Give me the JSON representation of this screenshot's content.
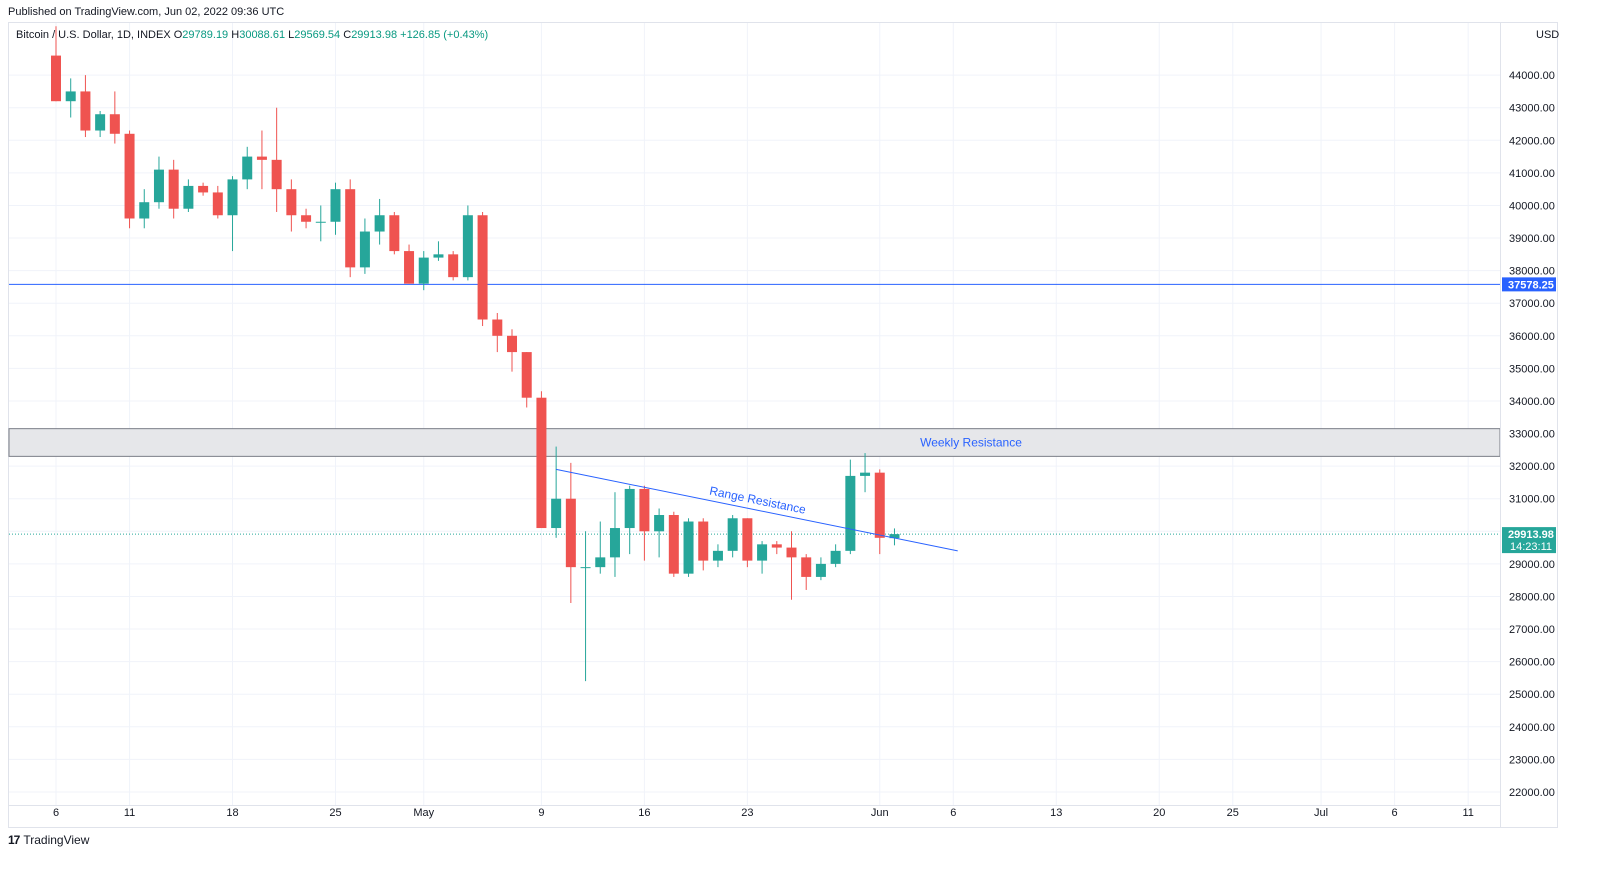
{
  "header": {
    "published": "Published on TradingView.com, Jun 02, 2022 09:36 UTC"
  },
  "legend": {
    "symbol": "Bitcoin / U.S. Dollar, 1D, INDEX",
    "open_label": "O",
    "open": "29789.19",
    "high_label": "H",
    "high": "30088.61",
    "low_label": "L",
    "low": "29569.54",
    "close_label": "C",
    "close": "29913.98",
    "change": "+126.85 (+0.43%)"
  },
  "currency": "USD",
  "brand": {
    "logo": "17",
    "name": "TradingView"
  },
  "colors": {
    "up": "#26a69a",
    "down": "#ef5350",
    "grid": "#f0f3fa",
    "hline": "#2962ff",
    "zone_fill": "#e6e7ea",
    "zone_border": "#7a7d86",
    "price_tag": "#26a69a"
  },
  "chart_data": {
    "type": "candlestick",
    "y_range": [
      21600,
      45600
    ],
    "y_ticks": [
      22000,
      23000,
      24000,
      25000,
      26000,
      27000,
      28000,
      29000,
      30000,
      31000,
      32000,
      33000,
      34000,
      35000,
      36000,
      37000,
      38000,
      39000,
      40000,
      41000,
      42000,
      43000,
      44000
    ],
    "y_tick_labels": [
      "22000.00",
      "23000.00",
      "24000.00",
      "25000.00",
      "26000.00",
      "27000.00",
      "28000.00",
      "29000.00",
      "30000.00",
      "31000.00",
      "32000.00",
      "33000.00",
      "34000.00",
      "35000.00",
      "36000.00",
      "37000.00",
      "38000.00",
      "39000.00",
      "40000.00",
      "41000.00",
      "42000.00",
      "43000.00",
      "44000.00"
    ],
    "x_ticks": [
      {
        "day": 0,
        "label": "6"
      },
      {
        "day": 5,
        "label": "11"
      },
      {
        "day": 12,
        "label": "18"
      },
      {
        "day": 19,
        "label": "25"
      },
      {
        "day": 25,
        "label": "May"
      },
      {
        "day": 33,
        "label": "9"
      },
      {
        "day": 40,
        "label": "16"
      },
      {
        "day": 47,
        "label": "23"
      },
      {
        "day": 56,
        "label": "Jun"
      },
      {
        "day": 61,
        "label": "6"
      },
      {
        "day": 68,
        "label": "13"
      },
      {
        "day": 75,
        "label": "20"
      },
      {
        "day": 80,
        "label": "25"
      },
      {
        "day": 86,
        "label": "Jul"
      },
      {
        "day": 91,
        "label": "6"
      },
      {
        "day": 96,
        "label": "11"
      }
    ],
    "candles": [
      [
        44600,
        45500,
        43200,
        43200
      ],
      [
        43200,
        43900,
        42700,
        43500
      ],
      [
        43500,
        44000,
        42100,
        42300
      ],
      [
        42300,
        42900,
        42100,
        42800
      ],
      [
        42800,
        43500,
        41900,
        42200
      ],
      [
        42200,
        42300,
        39300,
        39600
      ],
      [
        39600,
        40500,
        39300,
        40100
      ],
      [
        40100,
        41500,
        39900,
        41100
      ],
      [
        41100,
        41400,
        39600,
        39900
      ],
      [
        39900,
        40800,
        39800,
        40600
      ],
      [
        40600,
        40700,
        40300,
        40400
      ],
      [
        40400,
        40600,
        39600,
        39700
      ],
      [
        39700,
        40900,
        38600,
        40800
      ],
      [
        40800,
        41800,
        40500,
        41500
      ],
      [
        41500,
        42300,
        40500,
        41400
      ],
      [
        41400,
        43000,
        39800,
        40500
      ],
      [
        40500,
        40800,
        39200,
        39700
      ],
      [
        39700,
        39900,
        39300,
        39500
      ],
      [
        39500,
        40000,
        38900,
        39500
      ],
      [
        39500,
        40700,
        39100,
        40500
      ],
      [
        40500,
        40800,
        37800,
        38100
      ],
      [
        38100,
        39600,
        37900,
        39200
      ],
      [
        39200,
        40200,
        38800,
        39700
      ],
      [
        39700,
        39800,
        38500,
        38600
      ],
      [
        38600,
        38800,
        37600,
        37600
      ],
      [
        37600,
        38600,
        37400,
        38400
      ],
      [
        38400,
        38900,
        38300,
        38500
      ],
      [
        38500,
        38600,
        37700,
        37800
      ],
      [
        37800,
        40000,
        37700,
        39700
      ],
      [
        39700,
        39800,
        36300,
        36500
      ],
      [
        36500,
        36700,
        35500,
        36000
      ],
      [
        36000,
        36200,
        34900,
        35500
      ],
      [
        35500,
        35500,
        33800,
        34100
      ],
      [
        34100,
        34300,
        30100,
        30100
      ],
      [
        30100,
        32600,
        29800,
        31000
      ],
      [
        31000,
        32100,
        27800,
        28900
      ],
      [
        28900,
        30000,
        25400,
        28900
      ],
      [
        28900,
        30300,
        28700,
        29200
      ],
      [
        29200,
        31200,
        28600,
        30100
      ],
      [
        30100,
        31400,
        29300,
        31300
      ],
      [
        31300,
        31400,
        29100,
        30000
      ],
      [
        30000,
        30700,
        29200,
        30500
      ],
      [
        30500,
        30600,
        28600,
        28700
      ],
      [
        28700,
        30400,
        28600,
        30300
      ],
      [
        30300,
        30400,
        28800,
        29100
      ],
      [
        29100,
        29600,
        28900,
        29400
      ],
      [
        29400,
        30500,
        29200,
        30400
      ],
      [
        30400,
        30400,
        28900,
        29100
      ],
      [
        29100,
        29700,
        28700,
        29600
      ],
      [
        29600,
        29700,
        29300,
        29500
      ],
      [
        29500,
        30000,
        27900,
        29200
      ],
      [
        29200,
        29300,
        28200,
        28600
      ],
      [
        28600,
        29200,
        28500,
        29000
      ],
      [
        29000,
        29600,
        28900,
        29400
      ],
      [
        29400,
        32200,
        29300,
        31700
      ],
      [
        31700,
        32400,
        31200,
        31800
      ],
      [
        31800,
        31900,
        29300,
        29800
      ],
      [
        29789.19,
        30088.61,
        29569.54,
        29913.98
      ]
    ],
    "horizontal_line": {
      "value": 37578.25,
      "label": "37578.25"
    },
    "resistance_zone": {
      "from": 32300,
      "to": 33150,
      "label": "Weekly Resistance"
    },
    "trendline": {
      "from_day": 34,
      "from_value": 31900,
      "to_day": 61.3,
      "to_value": 29400,
      "label": "Range Resistance"
    },
    "last_price": {
      "value": 29913.98,
      "label": "29913.98",
      "countdown": "14:23:11"
    },
    "grid": true
  }
}
